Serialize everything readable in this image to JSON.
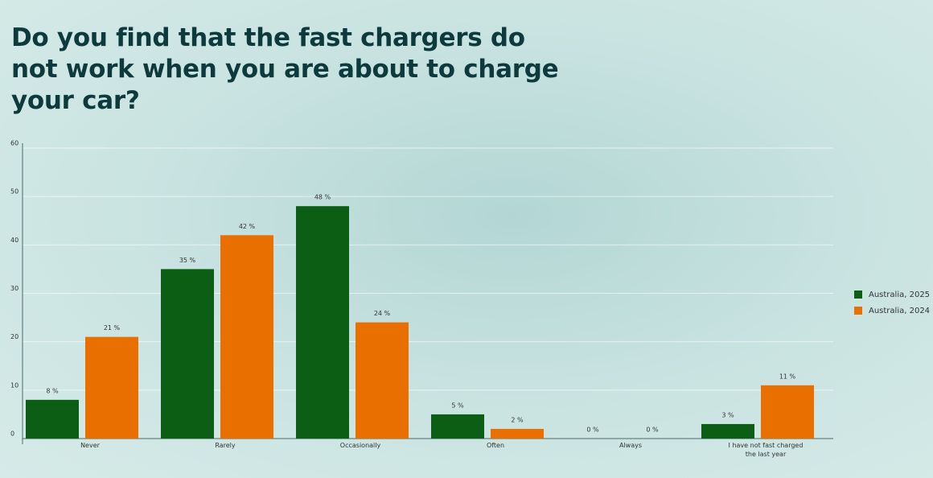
{
  "chart_data": {
    "type": "bar",
    "title": "Do you find that the fast chargers do not work when you are about to charge your car?",
    "categories": [
      "Never",
      "Rarely",
      "Occasionally",
      "Often",
      "Always",
      "I have not fast charged the last year"
    ],
    "series": [
      {
        "name": "Australia, 2025",
        "color": "#0b5e14",
        "values": [
          8,
          35,
          48,
          5,
          0,
          3
        ],
        "value_labels": [
          "8 %",
          "35 %",
          "48 %",
          "5 %",
          "0 %",
          "3 %"
        ]
      },
      {
        "name": "Australia, 2024",
        "color": "#e86f00",
        "values": [
          21,
          42,
          24,
          2,
          0,
          11
        ],
        "value_labels": [
          "21 %",
          "42 %",
          "24 %",
          "2 %",
          "0 %",
          "11 %"
        ]
      }
    ],
    "ylim": [
      0,
      60
    ],
    "yticks": [
      0,
      10,
      20,
      30,
      40,
      50,
      60
    ],
    "grid": true,
    "legend": "right"
  }
}
